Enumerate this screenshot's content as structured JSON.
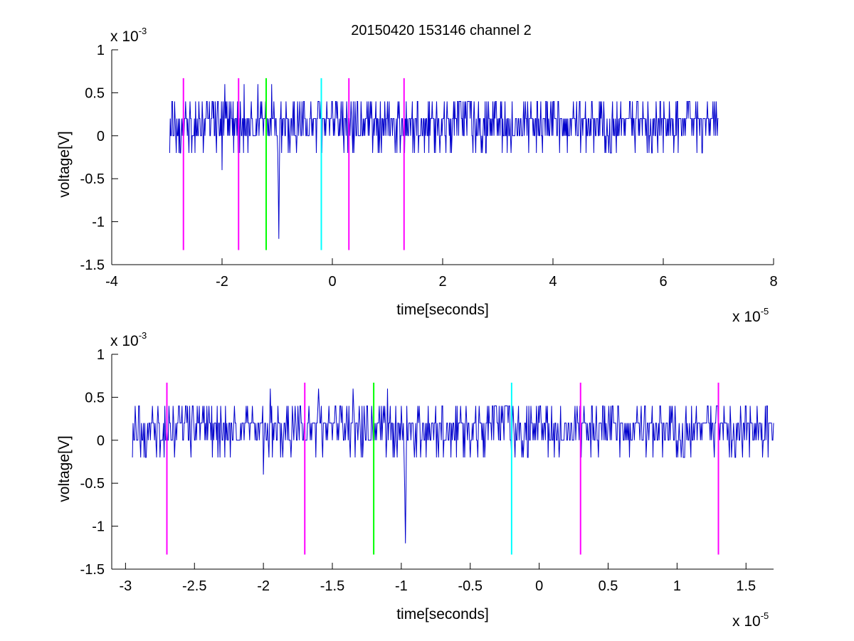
{
  "title": "20150420 153146 channel 2",
  "chart_data": [
    {
      "type": "line",
      "title": "20150420 153146 channel 2",
      "xlabel": "time[seconds]",
      "ylabel": "voltage[V]",
      "x_exponent": {
        "base": "x 10",
        "power": "-5"
      },
      "y_exponent": {
        "base": "x 10",
        "power": "-3"
      },
      "xlim": [
        -4e-05,
        8e-05
      ],
      "ylim": [
        -0.0015,
        0.001
      ],
      "x_ticks": [
        -4e-05,
        -2e-05,
        0,
        2e-05,
        4e-05,
        6e-05,
        8e-05
      ],
      "x_tick_labels": [
        "-4",
        "-2",
        "0",
        "2",
        "4",
        "6",
        "8"
      ],
      "y_ticks": [
        -0.0015,
        -0.001,
        -0.0005,
        0,
        0.0005,
        0.001
      ],
      "y_tick_labels": [
        "-1.5",
        "-1",
        "-0.5",
        "0",
        "0.5",
        "1"
      ],
      "grid": false,
      "series": [
        {
          "color": "#0000cc",
          "x_range": [
            -2.95e-05,
            7e-05
          ],
          "dt": 1e-07,
          "baseline": 0.0002,
          "levels": [
            -0.0002,
            0,
            0.0002,
            0.0004
          ],
          "spikes": [
            {
              "x": -2.9e-05,
              "y": 0.0004
            },
            {
              "x": -2e-05,
              "y": -0.0004
            },
            {
              "x": -1.95e-05,
              "y": 0.0006
            },
            {
              "x": -1.6e-05,
              "y": 0.0006
            },
            {
              "x": -1.35e-05,
              "y": 0.0006
            },
            {
              "x": -1.1e-05,
              "y": 0.0006
            },
            {
              "x": -9.7e-06,
              "y": -0.0012
            }
          ]
        }
      ],
      "markers": [
        {
          "x": -2.7e-05,
          "color": "#ff00ff"
        },
        {
          "x": -1.7e-05,
          "color": "#ff00ff"
        },
        {
          "x": -1.2e-05,
          "color": "#00ff00"
        },
        {
          "x": -2e-06,
          "color": "#00ffff"
        },
        {
          "x": 3e-06,
          "color": "#ff00ff"
        },
        {
          "x": 1.3e-05,
          "color": "#ff00ff"
        }
      ],
      "marker_y_range": [
        -0.00133,
        0.00067
      ]
    },
    {
      "type": "line",
      "xlabel": "time[seconds]",
      "ylabel": "voltage[V]",
      "x_exponent": {
        "base": "x 10",
        "power": "-5"
      },
      "y_exponent": {
        "base": "x 10",
        "power": "-3"
      },
      "xlim": [
        -3.1e-05,
        1.7e-05
      ],
      "ylim": [
        -0.0015,
        0.001
      ],
      "x_ticks": [
        -3e-05,
        -2.5e-05,
        -2e-05,
        -1.5e-05,
        -1e-05,
        -5e-06,
        0,
        5e-06,
        1e-05,
        1.5e-05
      ],
      "x_tick_labels": [
        "-3",
        "-2.5",
        "-2",
        "-1.5",
        "-1",
        "-0.5",
        "0",
        "0.5",
        "1",
        "1.5"
      ],
      "y_ticks": [
        -0.0015,
        -0.001,
        -0.0005,
        0,
        0.0005,
        0.001
      ],
      "y_tick_labels": [
        "-1.5",
        "-1",
        "-0.5",
        "0",
        "0.5",
        "1"
      ],
      "grid": false,
      "series": [
        {
          "color": "#0000cc",
          "x_range": [
            -2.95e-05,
            1.7e-05
          ],
          "dt": 5e-08,
          "baseline": 0.0002,
          "levels": [
            -0.0002,
            0,
            0.0002,
            0.0004
          ],
          "spikes": [
            {
              "x": -2.9e-05,
              "y": 0.0004
            },
            {
              "x": -2e-05,
              "y": -0.0004
            },
            {
              "x": -1.95e-05,
              "y": 0.0006
            },
            {
              "x": -1.6e-05,
              "y": 0.0006
            },
            {
              "x": -1.35e-05,
              "y": 0.0006
            },
            {
              "x": -1.1e-05,
              "y": 0.0006
            },
            {
              "x": -9.7e-06,
              "y": -0.0012
            }
          ]
        }
      ],
      "markers": [
        {
          "x": -2.7e-05,
          "color": "#ff00ff"
        },
        {
          "x": -1.7e-05,
          "color": "#ff00ff"
        },
        {
          "x": -1.2e-05,
          "color": "#00ff00"
        },
        {
          "x": -2e-06,
          "color": "#00ffff"
        },
        {
          "x": 3e-06,
          "color": "#ff00ff"
        },
        {
          "x": 1.3e-05,
          "color": "#ff00ff"
        }
      ],
      "marker_y_range": [
        -0.00133,
        0.00067
      ]
    }
  ]
}
